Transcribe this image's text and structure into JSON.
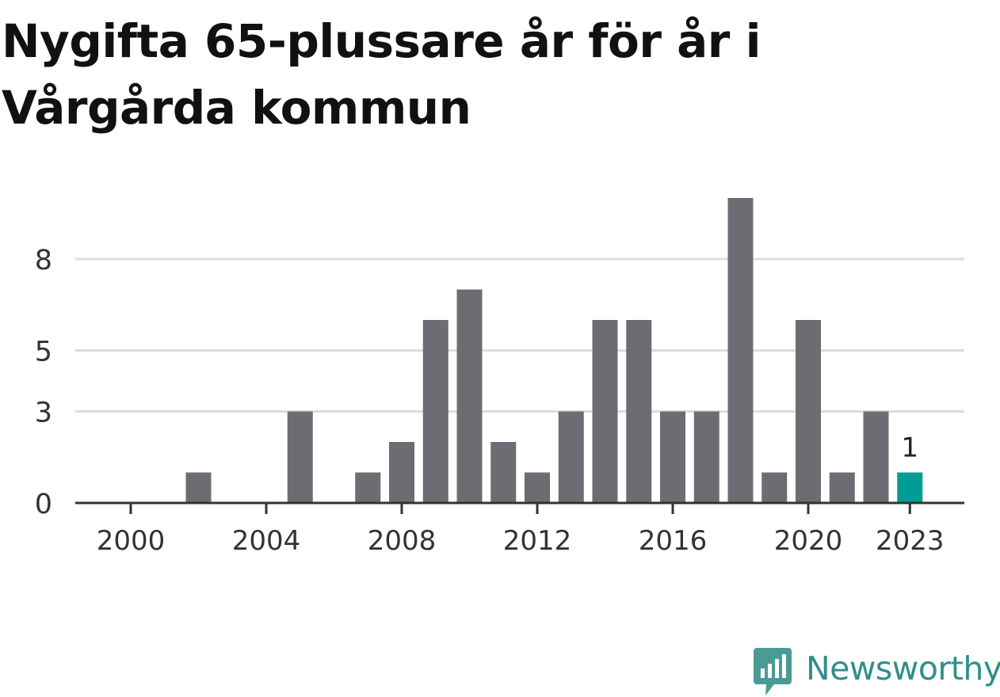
{
  "title": "Nygifta 65-plussare år för år i Vårgårda kommun",
  "chart_data": {
    "type": "bar",
    "title": "Nygifta 65-plussare år för år i Vårgårda kommun",
    "xlabel": "",
    "ylabel": "",
    "categories": [
      "2000",
      "2001",
      "2002",
      "2003",
      "2004",
      "2005",
      "2006",
      "2007",
      "2008",
      "2009",
      "2010",
      "2011",
      "2012",
      "2013",
      "2014",
      "2015",
      "2016",
      "2017",
      "2018",
      "2019",
      "2020",
      "2021",
      "2022",
      "2023"
    ],
    "values": [
      0,
      0,
      1,
      0,
      0,
      3,
      0,
      1,
      2,
      6,
      7,
      2,
      1,
      3,
      6,
      6,
      3,
      3,
      10,
      1,
      6,
      1,
      3,
      1
    ],
    "ylim": [
      0,
      10
    ],
    "y_ticks": [
      {
        "value": 0,
        "label": "0"
      },
      {
        "value": 3,
        "label": "3"
      },
      {
        "value": 5,
        "label": "5"
      },
      {
        "value": 8,
        "label": "8"
      }
    ],
    "x_ticks": [
      "2000",
      "2004",
      "2008",
      "2012",
      "2016",
      "2020",
      "2023"
    ],
    "highlight_category": "2023",
    "data_labels": [
      {
        "category": "2023",
        "label": "1"
      }
    ],
    "grid": "horizontal",
    "colors": {
      "bar": "#6d6c72",
      "highlight": "#009d94",
      "grid": "#dddddd",
      "axis": "#333333",
      "tick_label": "#333333"
    }
  },
  "branding": {
    "logo_text": "Newsworthy",
    "logo_icon": "newsworthy-logo-icon",
    "color": "#2f8f8a"
  }
}
